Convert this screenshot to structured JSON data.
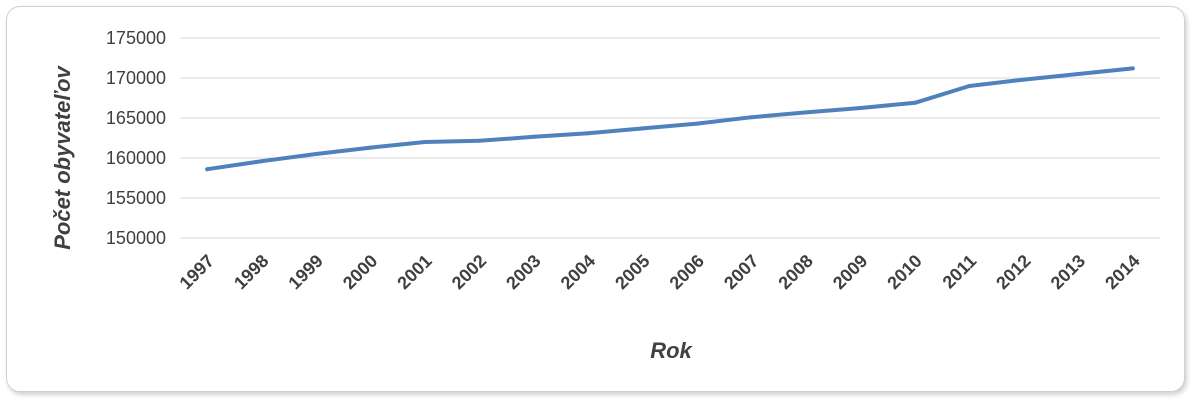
{
  "chart_data": {
    "type": "line",
    "title": "",
    "xlabel": "Rok",
    "ylabel": "Počet obyvateľov",
    "x": [
      "1997",
      "1998",
      "1999",
      "2000",
      "2001",
      "2002",
      "2003",
      "2004",
      "2005",
      "2006",
      "2007",
      "2008",
      "2009",
      "2010",
      "2011",
      "2012",
      "2013",
      "2014"
    ],
    "series": [
      {
        "values": [
          158600,
          159600,
          160500,
          161300,
          162000,
          162150,
          162650,
          163100,
          163700,
          164300,
          165100,
          165700,
          166250,
          166900,
          169000,
          169800,
          170500,
          171200
        ]
      }
    ],
    "ylim": [
      150000,
      175000
    ],
    "yticks": [
      150000,
      155000,
      160000,
      165000,
      170000,
      175000
    ],
    "grid": true,
    "legend": "none",
    "colors": {
      "series": "#4f81bd",
      "grid": "#d9d9d9",
      "text": "#404040"
    }
  }
}
